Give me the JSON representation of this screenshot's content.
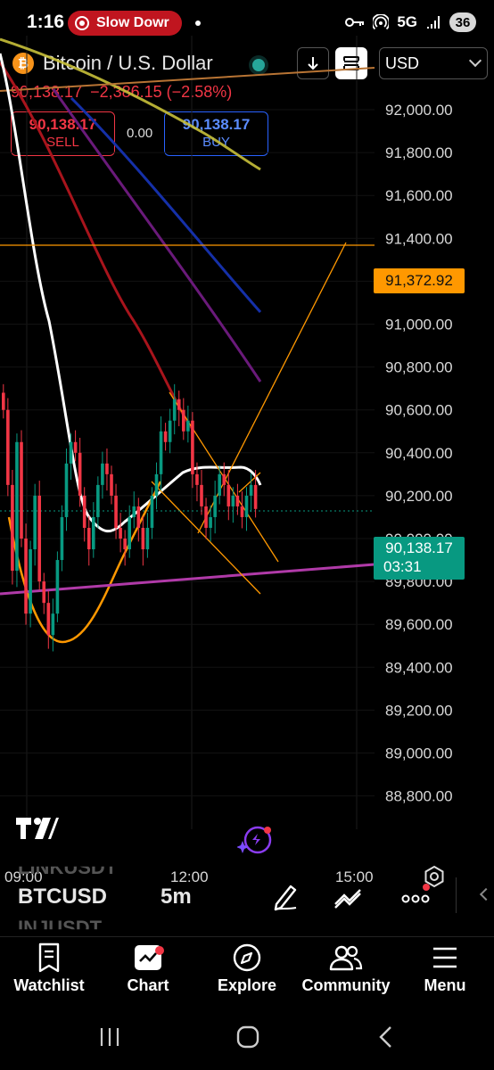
{
  "status_bar": {
    "time": "1:16",
    "recording_label": "Slow Dowr",
    "network": "5G",
    "battery": "36"
  },
  "header": {
    "symbol_title": "Bitcoin / U.S. Dollar",
    "currency": "USD",
    "last_price": "90,138.17",
    "change": "−2,386.15 (−2.58%)",
    "sell_price": "90,138.17",
    "sell_label": "SELL",
    "buy_price": "90,138.17",
    "buy_label": "BUY",
    "spread": "0.00",
    "indicator_count": "3"
  },
  "colors": {
    "up": "#089981",
    "down": "#f23645",
    "accent_orange": "#ff9800",
    "buy_blue": "#2962ff"
  },
  "chart_data": {
    "type": "candlestick",
    "symbol": "BTCUSD",
    "interval": "5m",
    "price_axis_ticks": [
      "92,000.00",
      "91,800.00",
      "91,600.00",
      "91,400.00",
      "91,200.00",
      "91,000.00",
      "90,800.00",
      "90,600.00",
      "90,400.00",
      "90,200.00",
      "90,000.00",
      "89,800.00",
      "89,600.00",
      "89,400.00",
      "89,200.00",
      "89,000.00",
      "88,800.00"
    ],
    "time_axis_ticks": [
      "09:00",
      "12:00",
      "15:00"
    ],
    "ylim": [
      88750,
      92100
    ],
    "current_price": 90138.17,
    "current_price_label": "90,138.17",
    "countdown": "03:31",
    "horizontal_level": 91372.92,
    "horizontal_level_label": "91,372.92",
    "candles_close_approx": [
      90600,
      90250,
      89850,
      90450,
      90000,
      89650,
      89950,
      90200,
      89800,
      89700,
      89550,
      89650,
      89900,
      90100,
      90350,
      90450,
      90400,
      90200,
      90050,
      89950,
      90100,
      90250,
      90350,
      90300,
      90200,
      90050,
      90000,
      89950,
      90100,
      90150,
      90050,
      89950,
      90050,
      90200,
      90300,
      90500,
      90450,
      90550,
      90650,
      90600,
      90500,
      90550,
      90300,
      90250,
      90150,
      90050,
      90100,
      90200,
      90300,
      90250,
      90150,
      90200,
      90150,
      90100,
      90200,
      90250,
      90138
    ]
  },
  "toolbar": {
    "ghost_above": "LINKUSDT",
    "symbol": "BTCUSD",
    "interval": "5m",
    "ghost_below": "INJUSDT"
  },
  "nav": {
    "watchlist": "Watchlist",
    "chart": "Chart",
    "explore": "Explore",
    "community": "Community",
    "menu": "Menu"
  }
}
